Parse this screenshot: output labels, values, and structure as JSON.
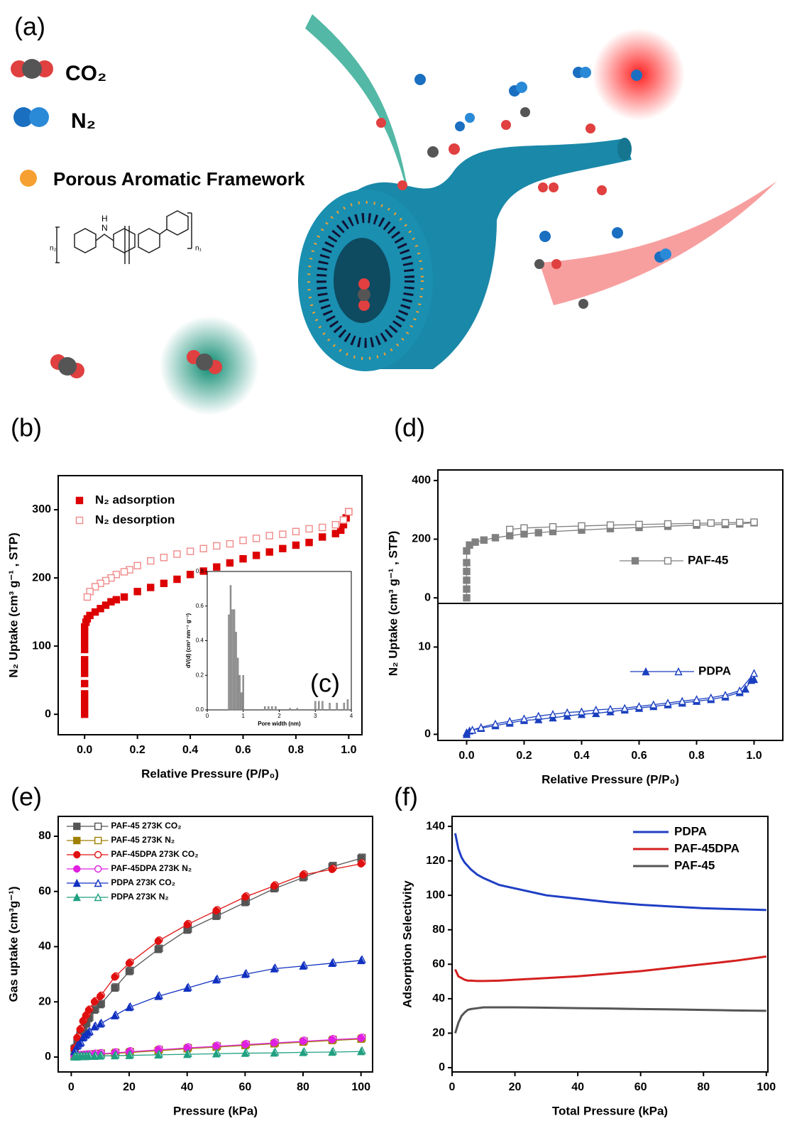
{
  "illustration": {
    "panel_label": "(a)",
    "legend": [
      {
        "label": "CO₂"
      },
      {
        "label": "N₂"
      },
      {
        "label": "Porous Aromatic  Framework"
      }
    ],
    "structure_labels": [
      "n₂",
      "N",
      "H",
      "n₁"
    ]
  },
  "chart_data": [
    {
      "type": "scatter",
      "panel_label": "(b)",
      "xlabel": "Relative Pressure (P/P₀)",
      "ylabel": "N₂ Uptake (cm³ g⁻¹ , STP)",
      "xlim": [
        -0.1,
        1.05
      ],
      "ylim": [
        -30,
        350
      ],
      "xticks": [
        {
          "value": 0,
          "label": "0.0"
        },
        {
          "value": 0.2,
          "label": "0.2"
        },
        {
          "value": 0.4,
          "label": "0.4"
        },
        {
          "value": 0.6,
          "label": "0.6"
        },
        {
          "value": 0.8,
          "label": "0.8"
        },
        {
          "value": 1,
          "label": "1.0"
        }
      ],
      "yticks": [
        0,
        100,
        200,
        300
      ],
      "legend": "upper left",
      "connect": false,
      "series": [
        {
          "name": "N₂ adsorption",
          "color": "#dd0000",
          "marker": "square",
          "open": false,
          "x": [
            0,
            0,
            0,
            0,
            0,
            0,
            0,
            0,
            0,
            0,
            0,
            0,
            0,
            0.005,
            0.01,
            0.02,
            0.04,
            0.06,
            0.08,
            0.1,
            0.12,
            0.15,
            0.2,
            0.25,
            0.3,
            0.35,
            0.4,
            0.45,
            0.5,
            0.55,
            0.6,
            0.65,
            0.7,
            0.75,
            0.8,
            0.85,
            0.9,
            0.95,
            0.97,
            0.98,
            0.99,
            1.0
          ],
          "values": [
            0,
            10,
            20,
            30,
            45,
            60,
            70,
            80,
            95,
            105,
            115,
            122,
            128,
            135,
            140,
            145,
            150,
            155,
            160,
            165,
            168,
            172,
            180,
            186,
            192,
            198,
            205,
            210,
            216,
            222,
            228,
            233,
            238,
            243,
            248,
            252,
            260,
            265,
            270,
            278,
            288,
            297
          ]
        },
        {
          "name": "N₂ desorption",
          "color": "#f08a8a",
          "marker": "square",
          "open": true,
          "x": [
            1.0,
            0.98,
            0.95,
            0.9,
            0.85,
            0.8,
            0.75,
            0.7,
            0.65,
            0.6,
            0.55,
            0.5,
            0.45,
            0.4,
            0.35,
            0.3,
            0.25,
            0.2,
            0.17,
            0.15,
            0.12,
            0.1,
            0.08,
            0.06,
            0.04,
            0.02,
            0.01
          ],
          "values": [
            297,
            285,
            278,
            274,
            272,
            268,
            264,
            262,
            258,
            255,
            250,
            247,
            243,
            239,
            235,
            230,
            225,
            218,
            212,
            209,
            205,
            200,
            196,
            192,
            187,
            180,
            172
          ]
        }
      ]
    },
    {
      "type": "bar",
      "label": "(c)",
      "xlabel": "Pore width (nm)",
      "ylabel": "dV(d) (cm³ nm⁻¹ g⁻¹)",
      "xlim": [
        0,
        4
      ],
      "ylim": [
        0,
        0.8
      ],
      "xticks": [
        0,
        1,
        2,
        3,
        4
      ],
      "yticks": [
        {
          "value": 0,
          "label": "0.0"
        },
        {
          "value": 0.2,
          "label": "0.2"
        },
        {
          "value": 0.4,
          "label": "0.4"
        },
        {
          "value": 0.6,
          "label": "0.6"
        },
        {
          "value": 0.8,
          "label": "0.8"
        }
      ],
      "color": "#999999",
      "x": [
        0.6,
        0.65,
        0.7,
        0.75,
        0.8,
        0.85,
        0.9,
        0.95,
        1.0,
        1.6,
        1.7,
        1.8,
        1.9,
        2.3,
        2.5,
        3.0,
        3.1,
        3.2,
        3.4,
        3.6,
        3.8,
        3.9
      ],
      "values": [
        0.55,
        0.72,
        0.58,
        0.58,
        0.45,
        0.3,
        0.2,
        0.1,
        0.2,
        0.02,
        0.02,
        0.02,
        0.02,
        0.01,
        0.01,
        0.05,
        0.05,
        0.05,
        0.04,
        0.04,
        0.04,
        0.06
      ]
    },
    {
      "type": "scatter",
      "panel_label": "(d)",
      "ylabel": "N₂ Uptake (cm³ g⁻¹ , STP)",
      "xlim": [
        -0.1,
        1.1
      ],
      "ylim": [
        -19,
        436
      ],
      "yticks": [
        0,
        200,
        400
      ],
      "legend": "right",
      "connect": true,
      "series": [
        {
          "name": "PAF-45",
          "color": "#808080",
          "marker": "square",
          "x": [
            0,
            0,
            0,
            0,
            0,
            0,
            0.01,
            0.03,
            0.06,
            0.1,
            0.15,
            0.2,
            0.25,
            0.3,
            0.4,
            0.5,
            0.6,
            0.7,
            0.8,
            0.9,
            0.95,
            1.0
          ],
          "values": [
            0,
            30,
            60,
            90,
            120,
            160,
            180,
            190,
            197,
            205,
            212,
            218,
            222,
            226,
            231,
            236,
            240,
            244,
            248,
            250,
            252,
            256
          ],
          "x_desorption": [
            1.0,
            0.95,
            0.9,
            0.85,
            0.8,
            0.7,
            0.6,
            0.5,
            0.4,
            0.3,
            0.2,
            0.15
          ],
          "values_desorption": [
            258,
            257,
            256,
            255,
            254,
            252,
            250,
            248,
            245,
            242,
            238,
            233
          ]
        }
      ]
    },
    {
      "type": "scatter",
      "xlabel": "Relative Pressure (P/P₀)",
      "xlim": [
        -0.1,
        1.1
      ],
      "ylim": [
        -0.7,
        15
      ],
      "yticks": [
        0,
        10
      ],
      "xticks": [
        {
          "value": 0,
          "label": "0.0"
        },
        {
          "value": 0.2,
          "label": "0.2"
        },
        {
          "value": 0.4,
          "label": "0.4"
        },
        {
          "value": 0.6,
          "label": "0.6"
        },
        {
          "value": 0.8,
          "label": "0.8"
        },
        {
          "value": 1,
          "label": "1.0"
        }
      ],
      "legend": "right",
      "connect": true,
      "series": [
        {
          "name": "PDPA",
          "color": "#1a3fbf",
          "marker": "triangle",
          "x": [
            0,
            0,
            0.01,
            0.05,
            0.1,
            0.15,
            0.2,
            0.25,
            0.3,
            0.35,
            0.4,
            0.45,
            0.5,
            0.55,
            0.6,
            0.65,
            0.7,
            0.75,
            0.8,
            0.85,
            0.9,
            0.95,
            0.97,
            0.99,
            1.0
          ],
          "values": [
            0,
            0.2,
            0.4,
            0.7,
            1.0,
            1.3,
            1.6,
            1.7,
            1.9,
            2.1,
            2.3,
            2.4,
            2.6,
            2.8,
            3.0,
            3.2,
            3.4,
            3.6,
            3.8,
            4.0,
            4.3,
            4.8,
            5.2,
            6.2,
            6.3
          ],
          "x_desorption": [
            1.0,
            0.95,
            0.9,
            0.85,
            0.8,
            0.75,
            0.7,
            0.65,
            0.6,
            0.55,
            0.5,
            0.45,
            0.4,
            0.35,
            0.3,
            0.25,
            0.2,
            0.15,
            0.1,
            0.05,
            0.02
          ],
          "values_desorption": [
            7.0,
            5.0,
            4.5,
            4.2,
            4.0,
            3.8,
            3.6,
            3.4,
            3.2,
            3.0,
            2.9,
            2.8,
            2.6,
            2.5,
            2.3,
            2.1,
            1.8,
            1.5,
            1.2,
            0.8,
            0.5
          ]
        }
      ]
    },
    {
      "type": "scatter",
      "panel_label": "(e)",
      "xlabel": "Pressure (kPa)",
      "ylabel": "Gas uptake (cm³g⁻¹)",
      "xlim": [
        -4.5,
        104
      ],
      "ylim": [
        -5.4,
        87.2
      ],
      "xticks": [
        0,
        20,
        40,
        60,
        80,
        100
      ],
      "yticks": [
        0,
        20,
        40,
        60,
        80
      ],
      "legend": "upper left",
      "connect": true,
      "open_markers": true,
      "x": [
        1,
        2,
        3,
        4,
        5,
        6,
        8,
        10,
        15,
        20,
        30,
        40,
        50,
        60,
        70,
        80,
        90,
        100
      ],
      "series": [
        {
          "name": "PAF-45 273K CO₂",
          "color": "#555555",
          "marker": "square",
          "values": [
            3,
            6,
            8,
            10,
            12,
            14,
            17,
            19,
            25,
            31,
            39,
            46,
            51,
            56,
            61,
            65,
            69,
            72
          ]
        },
        {
          "name": "PAF-45 273K N₂",
          "color": "#a08000",
          "marker": "square",
          "values": [
            0.2,
            0.3,
            0.4,
            0.5,
            0.6,
            0.7,
            0.8,
            1,
            1.3,
            1.6,
            2.3,
            3,
            3.6,
            4.2,
            4.8,
            5.4,
            6,
            6.5
          ]
        },
        {
          "name": "PAF-45DPA   273K CO₂",
          "color": "#e01010",
          "marker": "circle",
          "values": [
            3,
            7,
            10,
            13,
            15,
            17,
            20,
            22,
            29,
            34,
            42,
            48,
            53,
            58,
            62,
            66,
            68,
            70
          ]
        },
        {
          "name": "PAF-45DPA   273K N₂",
          "color": "#e020e0",
          "marker": "circle",
          "values": [
            0.3,
            0.4,
            0.5,
            0.6,
            0.7,
            0.8,
            1,
            1.2,
            1.5,
            1.9,
            2.6,
            3.3,
            3.9,
            4.5,
            5.1,
            5.7,
            6.3,
            6.8
          ]
        },
        {
          "name": "PDPA 273K CO₂",
          "color": "#1030c0",
          "marker": "triangle",
          "values": [
            2,
            4,
            5,
            7,
            8,
            9,
            11,
            12,
            15,
            18,
            22,
            25,
            28,
            30,
            32,
            33,
            34,
            35
          ]
        },
        {
          "name": "PDPA 273K N₂",
          "color": "#20a080",
          "marker": "triangle",
          "values": [
            0.1,
            0.1,
            0.2,
            0.2,
            0.2,
            0.3,
            0.3,
            0.4,
            0.5,
            0.6,
            0.8,
            1,
            1.2,
            1.4,
            1.5,
            1.7,
            1.8,
            2
          ]
        }
      ]
    },
    {
      "type": "line",
      "panel_label": "(f)",
      "xlabel": "Total Pressure (kPa)",
      "ylabel": "Adsorption Selectivity",
      "xlim": [
        0,
        100.5
      ],
      "ylim": [
        -2.5,
        145.8
      ],
      "xticks": [
        0,
        20,
        40,
        60,
        80,
        100
      ],
      "yticks": [
        0,
        20,
        40,
        60,
        80,
        100,
        120,
        140
      ],
      "legend": "upper right",
      "x": [
        1,
        2,
        3,
        4,
        5,
        6,
        8,
        10,
        15,
        20,
        30,
        40,
        50,
        60,
        70,
        80,
        90,
        100
      ],
      "series": [
        {
          "name": "PDPA",
          "color": "#1f3fc4",
          "values": [
            136,
            127,
            122,
            119,
            117,
            115,
            112,
            110,
            106,
            104,
            100,
            98,
            96,
            94.5,
            93.5,
            92.5,
            92,
            91.5
          ]
        },
        {
          "name": "PAF-45DPA",
          "color": "#d42020",
          "values": [
            57,
            53,
            52,
            51,
            50.5,
            50.5,
            50.3,
            50.3,
            50.5,
            51,
            52,
            53,
            54.5,
            56,
            58,
            60,
            62,
            64.5
          ]
        },
        {
          "name": "PAF-45",
          "color": "#555555",
          "values": [
            20,
            26,
            30,
            32,
            33.5,
            34,
            34.5,
            35,
            35,
            35,
            34.8,
            34.5,
            34.3,
            34,
            33.8,
            33.5,
            33.2,
            33
          ]
        }
      ]
    }
  ]
}
